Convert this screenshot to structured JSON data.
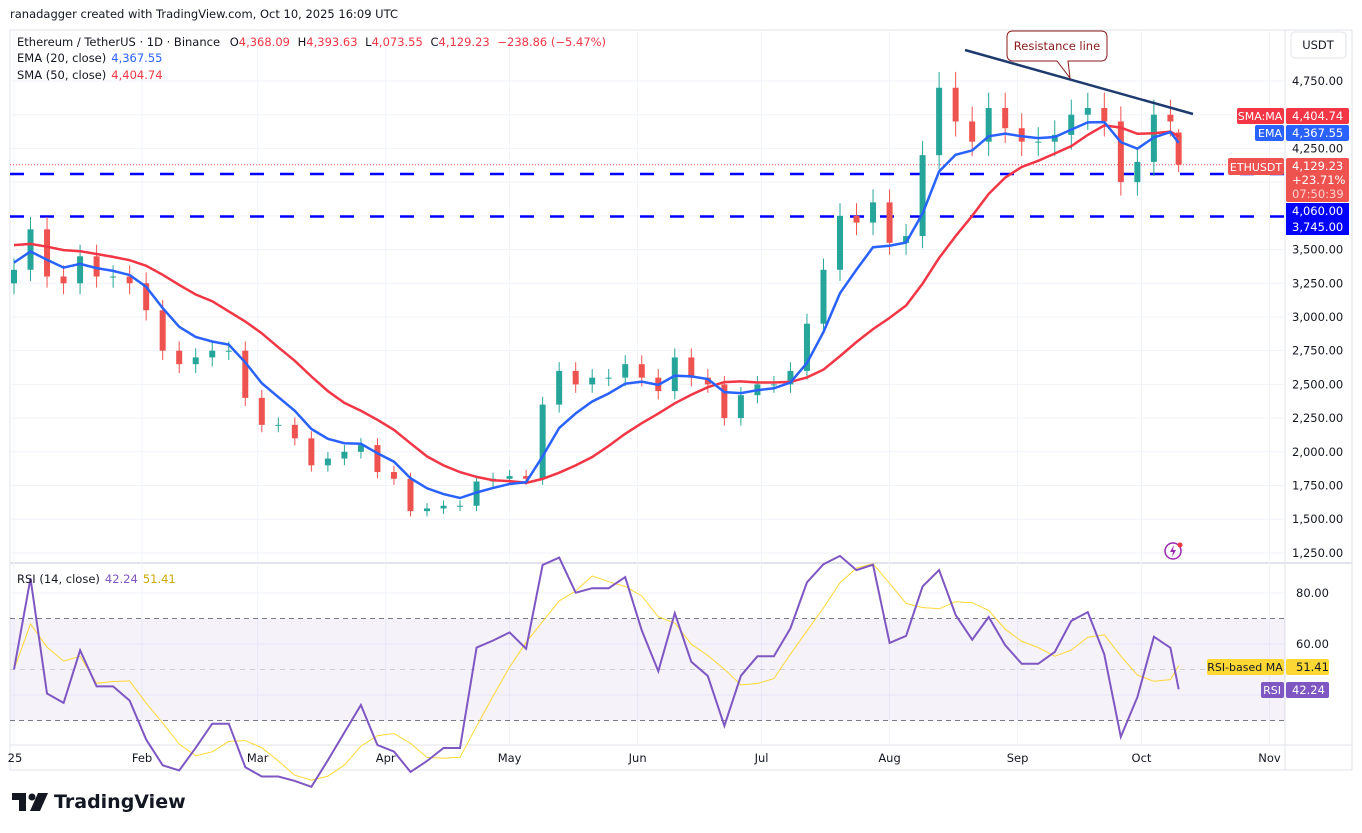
{
  "caption": "ranadagger created with TradingView.com, Oct 10, 2025 16:09 UTC",
  "legend": {
    "symbol": "Ethereum / TetherUS · 1D · Binance",
    "o_label": "O",
    "o": "4,368.09",
    "h_label": "H",
    "h": "4,393.63",
    "l_label": "L",
    "l": "4,073.55",
    "c_label": "C",
    "c": "4,129.23",
    "change": "−238.86 (−5.47%)",
    "ema_label": "EMA (20, close)",
    "ema_value": "4,367.55",
    "sma_label": "SMA (50, close)",
    "sma_value": "4,404.74",
    "rsi_label": "RSI (14, close)",
    "rsi_value": "42.24",
    "rsi_ma_value": "51.41"
  },
  "price_axis": {
    "currency": "USDT",
    "ticks": [
      "4,750.00",
      "4,250.00",
      "3,500.00",
      "3,250.00",
      "3,000.00",
      "2,750.00",
      "2,500.00",
      "2,250.00",
      "2,000.00",
      "1,750.00",
      "1,500.00",
      "1,250.00"
    ],
    "tags": {
      "sma_label": "SMA:MA",
      "sma_value": "4,404.74",
      "ema_label": "EMA",
      "ema_value": "4,367.55",
      "symbol_label": "ETHUSDT",
      "last_price": "4,129.23",
      "last_change": "+23.71%",
      "countdown": "07:50:39",
      "level1": "4,060.00",
      "level2": "3,745.00"
    }
  },
  "rsi_axis": {
    "ticks": [
      "80.00",
      "60.00"
    ],
    "tags": {
      "ma_label": "RSI-based MA",
      "ma_value": "51.41",
      "rsi_label": "RSI",
      "rsi_value": "42.24"
    }
  },
  "time_axis": [
    "25",
    "Feb",
    "Mar",
    "Apr",
    "May",
    "Jun",
    "Jul",
    "Aug",
    "Sep",
    "Oct",
    "Nov"
  ],
  "annotation": {
    "text": "Resistance line"
  },
  "brand": "TradingView",
  "colors": {
    "up": "#26a69a",
    "down": "#ef5350",
    "ema": "#2962ff",
    "sma": "#f23645",
    "rsi": "#7e57c2",
    "rsi_ma": "#fdd835",
    "level": "#0000ff",
    "resistance": "#1e3a6e"
  },
  "chart_data": {
    "type": "candlestick",
    "symbol": "ETHUSDT",
    "interval": "1D",
    "ylim": [
      1250,
      4900
    ],
    "grid": true,
    "dates": [
      "2025-01-01",
      "2025-01-05",
      "2025-01-09",
      "2025-01-13",
      "2025-01-17",
      "2025-01-21",
      "2025-01-25",
      "2025-01-29",
      "2025-02-02",
      "2025-02-06",
      "2025-02-10",
      "2025-02-14",
      "2025-02-18",
      "2025-02-22",
      "2025-02-26",
      "2025-03-02",
      "2025-03-06",
      "2025-03-10",
      "2025-03-14",
      "2025-03-18",
      "2025-03-22",
      "2025-03-26",
      "2025-03-30",
      "2025-04-03",
      "2025-04-07",
      "2025-04-11",
      "2025-04-15",
      "2025-04-19",
      "2025-04-23",
      "2025-04-27",
      "2025-05-01",
      "2025-05-05",
      "2025-05-09",
      "2025-05-13",
      "2025-05-17",
      "2025-05-21",
      "2025-05-25",
      "2025-05-29",
      "2025-06-02",
      "2025-06-06",
      "2025-06-10",
      "2025-06-14",
      "2025-06-18",
      "2025-06-22",
      "2025-06-26",
      "2025-06-30",
      "2025-07-04",
      "2025-07-08",
      "2025-07-12",
      "2025-07-16",
      "2025-07-20",
      "2025-07-24",
      "2025-07-28",
      "2025-08-01",
      "2025-08-05",
      "2025-08-09",
      "2025-08-13",
      "2025-08-17",
      "2025-08-21",
      "2025-08-25",
      "2025-08-29",
      "2025-09-02",
      "2025-09-06",
      "2025-09-10",
      "2025-09-14",
      "2025-09-18",
      "2025-09-22",
      "2025-09-26",
      "2025-09-30",
      "2025-10-04",
      "2025-10-08",
      "2025-10-10"
    ],
    "close": [
      3350,
      3650,
      3300,
      3250,
      3450,
      3300,
      3300,
      3250,
      3050,
      2750,
      2650,
      2700,
      2750,
      2750,
      2400,
      2200,
      2200,
      2100,
      1900,
      1950,
      2000,
      2050,
      1850,
      1800,
      1560,
      1580,
      1600,
      1600,
      1780,
      1800,
      1820,
      1800,
      2350,
      2600,
      2500,
      2550,
      2550,
      2650,
      2550,
      2450,
      2700,
      2550,
      2500,
      2250,
      2420,
      2500,
      2500,
      2600,
      2950,
      3350,
      3750,
      3700,
      3850,
      3550,
      3600,
      4200,
      4700,
      4450,
      4300,
      4550,
      4400,
      4300,
      4300,
      4350,
      4500,
      4550,
      4450,
      4000,
      4150,
      4500,
      4450,
      4129.23
    ],
    "last": {
      "open": 4368.09,
      "high": 4393.63,
      "low": 4073.55,
      "close": 4129.23
    },
    "indicators": {
      "ema20_last": 4367.55,
      "sma50_last": 4404.74,
      "rsi14_last": 42.24,
      "rsi_ma_last": 51.41
    },
    "horizontal_levels": [
      4060,
      3745
    ],
    "resistance_line": {
      "from": {
        "date": "2025-08-22",
        "price": 4960
      },
      "to": {
        "date": "2025-10-14",
        "price": 4490
      }
    },
    "rsi_bands": [
      70,
      30
    ]
  }
}
